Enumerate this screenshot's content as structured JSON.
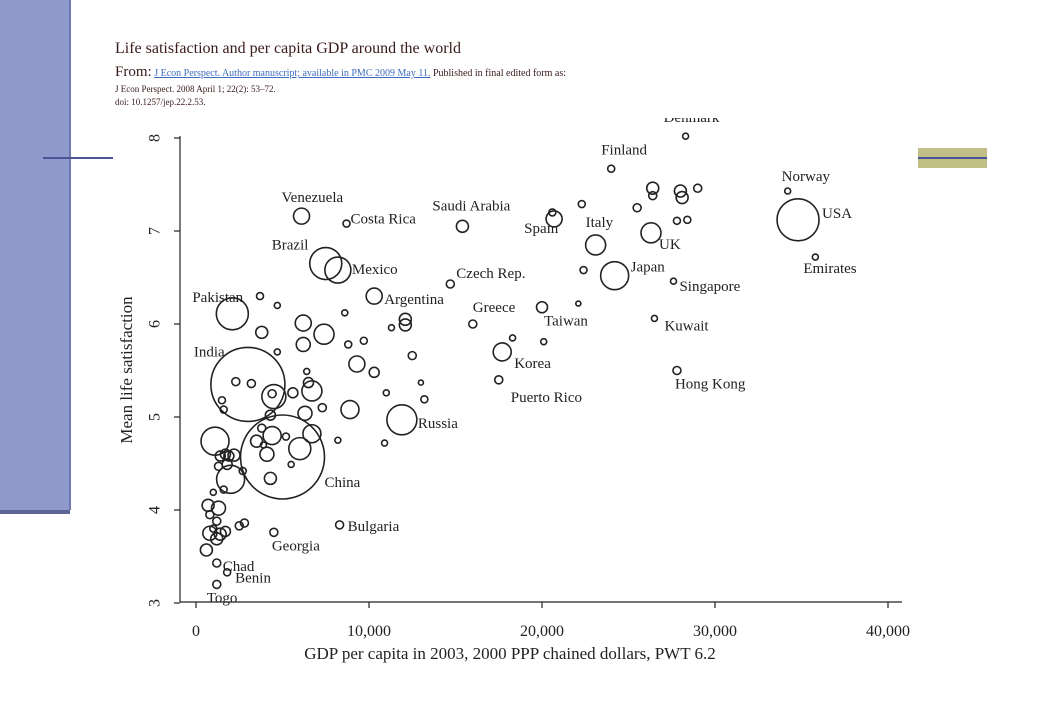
{
  "slide": {
    "title": "Life satisfaction and per capita GDP around the world",
    "from_label": "From:",
    "source_link": "J Econ Perspect. Author manuscript; available in PMC 2009 May 11.",
    "source_rest": " Published in final edited form as:",
    "citation_line1": "J Econ Perspect. 2008 April 1; 22(2): 53–72.",
    "citation_line2": "doi: 10.1257/jep.22.2.53."
  },
  "colors": {
    "sidebar": "#8f99cc",
    "accent": "#c2bf86",
    "line": "#4a5598",
    "link": "#3c6cc0"
  },
  "chart_data": {
    "type": "scatter",
    "xlabel": "GDP per capita in 2003, 2000 PPP chained dollars, PWT 6.2",
    "ylabel": "Mean life satisfaction",
    "xlim": [
      0,
      40000
    ],
    "ylim": [
      3,
      8
    ],
    "xticks": [
      0,
      10000,
      20000,
      30000,
      40000
    ],
    "xtick_labels": [
      "0",
      "10,000",
      "20,000",
      "30,000",
      "40,000"
    ],
    "yticks": [
      3,
      4,
      5,
      6,
      7,
      8
    ],
    "ytick_labels": [
      "3",
      "4",
      "5",
      "6",
      "7",
      "8"
    ],
    "marker": "hollow circle, size proportional to population",
    "labeled_points": [
      {
        "name": "Denmark",
        "x": 28300,
        "y": 8.02,
        "r": 3
      },
      {
        "name": "Finland",
        "x": 24000,
        "y": 7.67,
        "r": 3.5
      },
      {
        "name": "Norway",
        "x": 34200,
        "y": 7.43,
        "r": 3
      },
      {
        "name": "USA",
        "x": 34800,
        "y": 7.12,
        "r": 21
      },
      {
        "name": "Emirates",
        "x": 35800,
        "y": 6.72,
        "r": 3
      },
      {
        "name": "Venezuela",
        "x": 6100,
        "y": 7.16,
        "r": 8
      },
      {
        "name": "Costa Rica",
        "x": 8700,
        "y": 7.08,
        "r": 3.5
      },
      {
        "name": "Saudi Arabia",
        "x": 15400,
        "y": 7.05,
        "r": 6
      },
      {
        "name": "Spain",
        "x": 20700,
        "y": 7.13,
        "r": 8
      },
      {
        "name": "Italy",
        "x": 23100,
        "y": 6.85,
        "r": 10
      },
      {
        "name": "UK",
        "x": 26300,
        "y": 6.98,
        "r": 10
      },
      {
        "name": "Japan",
        "x": 24200,
        "y": 6.52,
        "r": 14
      },
      {
        "name": "Brazil",
        "x": 7500,
        "y": 6.65,
        "r": 16
      },
      {
        "name": "Mexico",
        "x": 8200,
        "y": 6.58,
        "r": 13
      },
      {
        "name": "Czech Rep.",
        "x": 14700,
        "y": 6.43,
        "r": 4
      },
      {
        "name": "Singapore",
        "x": 27600,
        "y": 6.46,
        "r": 3
      },
      {
        "name": "Pakistan",
        "x": 2100,
        "y": 6.11,
        "r": 16
      },
      {
        "name": "Argentina",
        "x": 10300,
        "y": 6.3,
        "r": 8
      },
      {
        "name": "Greece",
        "x": 16000,
        "y": 6.0,
        "r": 4
      },
      {
        "name": "Taiwan",
        "x": 20000,
        "y": 6.18,
        "r": 5.5
      },
      {
        "name": "Kuwait",
        "x": 26500,
        "y": 6.06,
        "r": 3
      },
      {
        "name": "India",
        "x": 3000,
        "y": 5.35,
        "r": 37
      },
      {
        "name": "Korea",
        "x": 17700,
        "y": 5.7,
        "r": 9
      },
      {
        "name": "Hong Kong",
        "x": 27800,
        "y": 5.5,
        "r": 4
      },
      {
        "name": "Puerto Rico",
        "x": 17500,
        "y": 5.4,
        "r": 4
      },
      {
        "name": "Russia",
        "x": 11900,
        "y": 4.97,
        "r": 15
      },
      {
        "name": "China",
        "x": 5000,
        "y": 4.57,
        "r": 42
      },
      {
        "name": "Bulgaria",
        "x": 8300,
        "y": 3.84,
        "r": 4
      },
      {
        "name": "Georgia",
        "x": 4500,
        "y": 3.76,
        "r": 4
      },
      {
        "name": "Chad",
        "x": 1200,
        "y": 3.43,
        "r": 4
      },
      {
        "name": "Benin",
        "x": 1800,
        "y": 3.33,
        "r": 3.5
      },
      {
        "name": "Togo",
        "x": 1200,
        "y": 3.2,
        "r": 4
      }
    ],
    "other_points": [
      {
        "x": 26400,
        "y": 7.46,
        "r": 6
      },
      {
        "x": 28000,
        "y": 7.43,
        "r": 6
      },
      {
        "x": 28100,
        "y": 7.36,
        "r": 6
      },
      {
        "x": 29000,
        "y": 7.46,
        "r": 4
      },
      {
        "x": 25500,
        "y": 7.25,
        "r": 4
      },
      {
        "x": 27800,
        "y": 7.11,
        "r": 3.5
      },
      {
        "x": 28400,
        "y": 7.12,
        "r": 3.5
      },
      {
        "x": 26400,
        "y": 7.38,
        "r": 4
      },
      {
        "x": 22300,
        "y": 7.29,
        "r": 3.5
      },
      {
        "x": 20600,
        "y": 7.2,
        "r": 3.5
      },
      {
        "x": 22400,
        "y": 6.58,
        "r": 3.5
      },
      {
        "x": 22100,
        "y": 6.22,
        "r": 2.5
      },
      {
        "x": 20100,
        "y": 5.81,
        "r": 3
      },
      {
        "x": 18300,
        "y": 5.85,
        "r": 3
      },
      {
        "x": 3700,
        "y": 6.3,
        "r": 3.5
      },
      {
        "x": 4700,
        "y": 6.2,
        "r": 3
      },
      {
        "x": 6200,
        "y": 6.01,
        "r": 8
      },
      {
        "x": 7400,
        "y": 5.89,
        "r": 10
      },
      {
        "x": 8600,
        "y": 6.12,
        "r": 3
      },
      {
        "x": 11300,
        "y": 5.96,
        "r": 3
      },
      {
        "x": 12100,
        "y": 6.05,
        "r": 6
      },
      {
        "x": 12100,
        "y": 5.99,
        "r": 6
      },
      {
        "x": 3800,
        "y": 5.91,
        "r": 6
      },
      {
        "x": 6200,
        "y": 5.78,
        "r": 7
      },
      {
        "x": 4700,
        "y": 5.7,
        "r": 3
      },
      {
        "x": 8800,
        "y": 5.78,
        "r": 3.5
      },
      {
        "x": 9700,
        "y": 5.82,
        "r": 3.5
      },
      {
        "x": 9300,
        "y": 5.57,
        "r": 8
      },
      {
        "x": 10300,
        "y": 5.48,
        "r": 5
      },
      {
        "x": 12500,
        "y": 5.66,
        "r": 4
      },
      {
        "x": 13000,
        "y": 5.37,
        "r": 2.5
      },
      {
        "x": 11000,
        "y": 5.26,
        "r": 3
      },
      {
        "x": 13200,
        "y": 5.19,
        "r": 3.5
      },
      {
        "x": 6400,
        "y": 5.49,
        "r": 3
      },
      {
        "x": 6500,
        "y": 5.37,
        "r": 5
      },
      {
        "x": 6700,
        "y": 5.28,
        "r": 10
      },
      {
        "x": 5600,
        "y": 5.26,
        "r": 5
      },
      {
        "x": 4500,
        "y": 5.22,
        "r": 12
      },
      {
        "x": 7300,
        "y": 5.1,
        "r": 4
      },
      {
        "x": 6300,
        "y": 5.04,
        "r": 7
      },
      {
        "x": 8900,
        "y": 5.08,
        "r": 9
      },
      {
        "x": 4300,
        "y": 5.02,
        "r": 5
      },
      {
        "x": 3800,
        "y": 4.88,
        "r": 4
      },
      {
        "x": 4400,
        "y": 4.8,
        "r": 9
      },
      {
        "x": 5200,
        "y": 4.79,
        "r": 3.5
      },
      {
        "x": 6700,
        "y": 4.82,
        "r": 9
      },
      {
        "x": 6000,
        "y": 4.66,
        "r": 11
      },
      {
        "x": 3500,
        "y": 4.74,
        "r": 6
      },
      {
        "x": 4100,
        "y": 4.6,
        "r": 7
      },
      {
        "x": 8200,
        "y": 4.75,
        "r": 3
      },
      {
        "x": 10900,
        "y": 4.72,
        "r": 3
      },
      {
        "x": 5500,
        "y": 4.49,
        "r": 3
      },
      {
        "x": 4300,
        "y": 4.34,
        "r": 6
      },
      {
        "x": 1100,
        "y": 4.74,
        "r": 14
      },
      {
        "x": 1700,
        "y": 4.6,
        "r": 5
      },
      {
        "x": 1400,
        "y": 4.58,
        "r": 5
      },
      {
        "x": 1900,
        "y": 4.58,
        "r": 5
      },
      {
        "x": 1300,
        "y": 4.47,
        "r": 4
      },
      {
        "x": 1800,
        "y": 4.49,
        "r": 5
      },
      {
        "x": 2200,
        "y": 4.59,
        "r": 6
      },
      {
        "x": 2700,
        "y": 4.42,
        "r": 3.5
      },
      {
        "x": 2000,
        "y": 4.33,
        "r": 14
      },
      {
        "x": 1600,
        "y": 4.22,
        "r": 3.5
      },
      {
        "x": 1000,
        "y": 4.19,
        "r": 3
      },
      {
        "x": 700,
        "y": 4.05,
        "r": 6
      },
      {
        "x": 1300,
        "y": 4.02,
        "r": 7
      },
      {
        "x": 800,
        "y": 3.95,
        "r": 4
      },
      {
        "x": 1200,
        "y": 3.88,
        "r": 4
      },
      {
        "x": 1000,
        "y": 3.8,
        "r": 3.5
      },
      {
        "x": 800,
        "y": 3.75,
        "r": 7
      },
      {
        "x": 1400,
        "y": 3.74,
        "r": 6
      },
      {
        "x": 1700,
        "y": 3.77,
        "r": 5
      },
      {
        "x": 1200,
        "y": 3.69,
        "r": 6
      },
      {
        "x": 600,
        "y": 3.57,
        "r": 6
      },
      {
        "x": 2500,
        "y": 3.83,
        "r": 4
      },
      {
        "x": 2800,
        "y": 3.86,
        "r": 4
      },
      {
        "x": 2300,
        "y": 5.38,
        "r": 4
      },
      {
        "x": 3200,
        "y": 5.36,
        "r": 4
      },
      {
        "x": 1500,
        "y": 5.18,
        "r": 3.5
      },
      {
        "x": 1600,
        "y": 5.08,
        "r": 3.5
      },
      {
        "x": 3900,
        "y": 4.7,
        "r": 3
      },
      {
        "x": 4400,
        "y": 5.25,
        "r": 4
      }
    ]
  }
}
